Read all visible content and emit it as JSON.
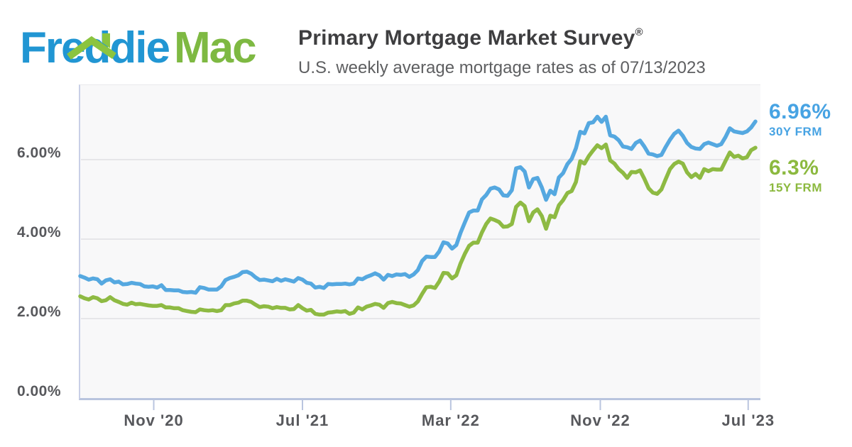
{
  "header": {
    "logo": {
      "part1": "Freddie",
      "part2": "Mac",
      "blue": "#2196d3",
      "green": "#7eb942",
      "roof_color": "#8bc43f"
    },
    "title": "Primary Mortgage Market Survey",
    "title_reg": "®",
    "subtitle": "U.S. weekly average mortgage rates as of 07/13/2023"
  },
  "legend": {
    "s30": {
      "value": "6.96%",
      "label": "30Y FRM",
      "color": "#47a3e3"
    },
    "s15": {
      "value": "6.3%",
      "label": "15Y FRM",
      "color": "#8cb93f"
    }
  },
  "chart_data": {
    "type": "line",
    "title": "U.S. weekly average mortgage rates as of 07/13/2023",
    "x_unit": "week",
    "x_start": "07/02/2020",
    "x_end": "07/13/2023",
    "ylim": [
      0,
      7.875
    ],
    "grid": "horizontal",
    "legend_position": "right",
    "y_ticks": [
      {
        "label": "6.00%",
        "value": 6
      },
      {
        "label": "4.00%",
        "value": 4
      },
      {
        "label": "2.00%",
        "value": 2
      },
      {
        "label": "0.00%",
        "value": 0
      }
    ],
    "x_ticks": [
      {
        "label": "Nov '20",
        "week": 17.2
      },
      {
        "label": "Jul '21",
        "week": 52
      },
      {
        "label": "Mar '22",
        "week": 86.7
      },
      {
        "label": "Nov '22",
        "week": 121.7
      },
      {
        "label": "Jul '23",
        "week": 156.3
      }
    ],
    "series": [
      {
        "name": "15Y FRM",
        "color": "#8eba43",
        "last_value": 6.3,
        "values": [
          2.56,
          2.51,
          2.48,
          2.54,
          2.51,
          2.44,
          2.46,
          2.54,
          2.46,
          2.42,
          2.37,
          2.35,
          2.4,
          2.36,
          2.37,
          2.35,
          2.33,
          2.32,
          2.32,
          2.34,
          2.28,
          2.28,
          2.26,
          2.26,
          2.21,
          2.19,
          2.17,
          2.16,
          2.23,
          2.21,
          2.2,
          2.21,
          2.19,
          2.21,
          2.34,
          2.34,
          2.38,
          2.4,
          2.45,
          2.45,
          2.42,
          2.35,
          2.29,
          2.31,
          2.3,
          2.26,
          2.29,
          2.27,
          2.27,
          2.23,
          2.24,
          2.34,
          2.26,
          2.2,
          2.22,
          2.12,
          2.1,
          2.1,
          2.15,
          2.16,
          2.18,
          2.17,
          2.19,
          2.12,
          2.15,
          2.28,
          2.23,
          2.3,
          2.33,
          2.37,
          2.35,
          2.27,
          2.39,
          2.42,
          2.39,
          2.38,
          2.34,
          2.3,
          2.33,
          2.43,
          2.62,
          2.79,
          2.8,
          2.77,
          2.93,
          3.15,
          3.14,
          3.01,
          3.09,
          3.39,
          3.63,
          3.83,
          3.91,
          3.91,
          4.17,
          4.38,
          4.52,
          4.48,
          4.43,
          4.31,
          4.32,
          4.38,
          4.81,
          4.92,
          4.83,
          4.45,
          4.67,
          4.75,
          4.58,
          4.26,
          4.59,
          4.55,
          4.85,
          4.98,
          5.16,
          5.21,
          5.44,
          5.96,
          5.9,
          6.09,
          6.23,
          6.36,
          6.29,
          6.38,
          5.98,
          5.9,
          5.76,
          5.67,
          5.54,
          5.69,
          5.68,
          5.73,
          5.52,
          5.28,
          5.17,
          5.14,
          5.25,
          5.51,
          5.76,
          5.89,
          5.95,
          5.9,
          5.68,
          5.56,
          5.64,
          5.54,
          5.76,
          5.71,
          5.76,
          5.75,
          5.75,
          5.97,
          6.18,
          6.07,
          6.1,
          6.03,
          6.06,
          6.24,
          6.3
        ]
      },
      {
        "name": "30Y FRM",
        "color": "#55a8e0",
        "last_value": 6.96,
        "values": [
          3.07,
          3.03,
          2.98,
          3.01,
          2.99,
          2.88,
          2.96,
          2.99,
          2.91,
          2.93,
          2.86,
          2.87,
          2.9,
          2.88,
          2.87,
          2.81,
          2.8,
          2.81,
          2.78,
          2.84,
          2.72,
          2.72,
          2.71,
          2.71,
          2.67,
          2.66,
          2.67,
          2.65,
          2.79,
          2.77,
          2.73,
          2.73,
          2.73,
          2.81,
          2.97,
          3.02,
          3.05,
          3.09,
          3.17,
          3.18,
          3.13,
          3.04,
          2.97,
          2.98,
          2.96,
          2.94,
          3.0,
          2.95,
          2.99,
          2.96,
          2.93,
          3.02,
          2.98,
          2.9,
          2.88,
          2.78,
          2.8,
          2.77,
          2.87,
          2.86,
          2.87,
          2.87,
          2.88,
          2.86,
          2.88,
          3.01,
          2.99,
          3.05,
          3.09,
          3.14,
          3.09,
          2.98,
          3.1,
          3.07,
          3.11,
          3.1,
          3.12,
          3.05,
          3.11,
          3.22,
          3.45,
          3.56,
          3.55,
          3.55,
          3.69,
          3.92,
          3.89,
          3.76,
          3.85,
          4.16,
          4.42,
          4.67,
          4.72,
          4.72,
          5.0,
          5.11,
          5.27,
          5.3,
          5.25,
          5.1,
          5.09,
          5.23,
          5.78,
          5.81,
          5.7,
          5.3,
          5.51,
          5.54,
          5.3,
          4.99,
          5.22,
          5.13,
          5.55,
          5.66,
          5.89,
          6.02,
          6.29,
          6.7,
          6.66,
          6.92,
          6.94,
          7.08,
          6.95,
          7.08,
          6.61,
          6.58,
          6.49,
          6.33,
          6.31,
          6.27,
          6.42,
          6.48,
          6.33,
          6.15,
          6.13,
          6.09,
          6.12,
          6.32,
          6.5,
          6.65,
          6.73,
          6.6,
          6.42,
          6.32,
          6.28,
          6.27,
          6.39,
          6.43,
          6.39,
          6.35,
          6.39,
          6.57,
          6.79,
          6.71,
          6.69,
          6.67,
          6.71,
          6.81,
          6.96
        ]
      }
    ]
  }
}
